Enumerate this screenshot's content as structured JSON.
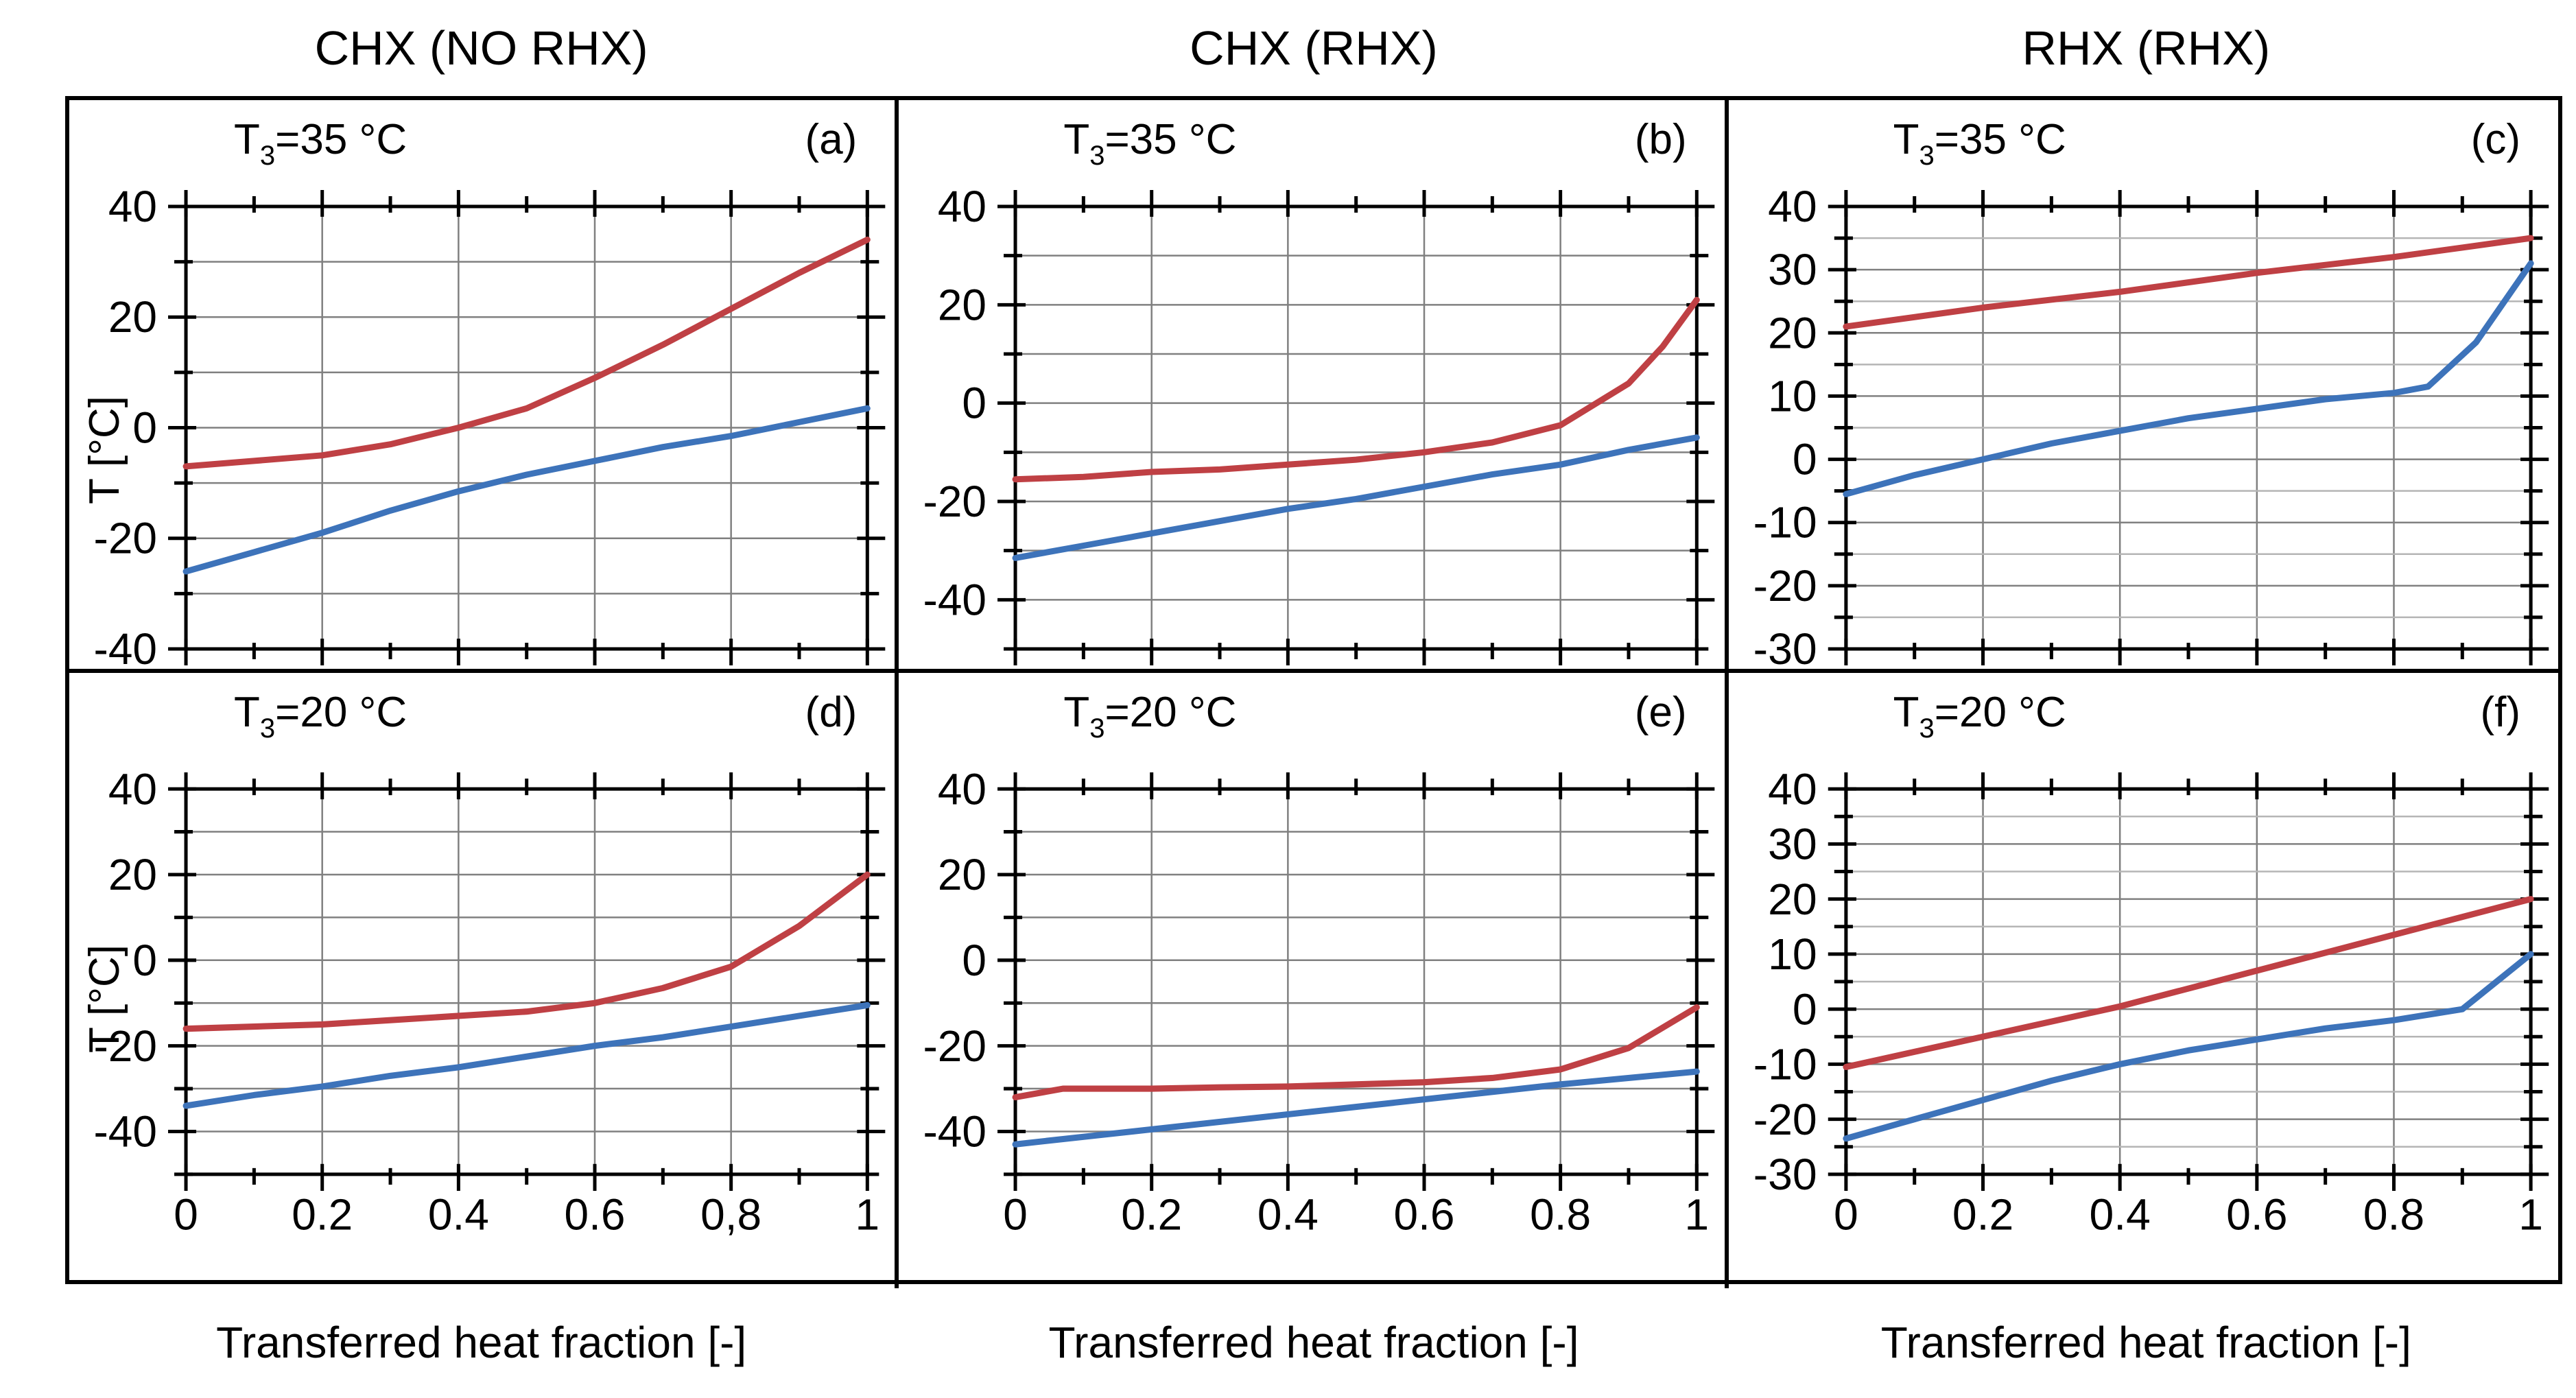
{
  "figure": {
    "column_titles": [
      "CHX (NO RHX)",
      "CHX (RHX)",
      "RHX (RHX)"
    ],
    "x_axis_title": "Transferred heat fraction [-]",
    "y_axis_title": "T [°C]",
    "colors": {
      "red_series": "#bf4044",
      "blue_series": "#3d73ba",
      "grid_major": "#808080",
      "grid_minor": "#b5b5b5",
      "axis": "#000000",
      "background": "#ffffff"
    }
  },
  "chart_data": [
    {
      "id": "a",
      "type": "line",
      "row": 0,
      "col": 0,
      "panel_label": "(a)",
      "annotation": {
        "pre": "T",
        "sub": "3",
        "post": "=35 °C"
      },
      "annotation_text": "T3=35 °C",
      "show_y_axis_title": true,
      "xlim": [
        0,
        1
      ],
      "ylim": [
        -40,
        40
      ],
      "grid_step": 10,
      "tick_step": 10,
      "ytick_values": [
        40,
        20,
        0,
        -20,
        -40
      ],
      "ytick_labels": [
        "40",
        "20",
        "0",
        "-20",
        "-40"
      ],
      "xtick_values": [
        0,
        0.2,
        0.4,
        0.6,
        0.8,
        1
      ],
      "xtick_labels": [],
      "series": [
        {
          "id": "red-line",
          "color_key": "red_series",
          "points": [
            [
              0,
              -7
            ],
            [
              0.1,
              -6
            ],
            [
              0.2,
              -5
            ],
            [
              0.3,
              -3
            ],
            [
              0.4,
              0
            ],
            [
              0.5,
              3.5
            ],
            [
              0.6,
              9
            ],
            [
              0.7,
              15
            ],
            [
              0.8,
              21.5
            ],
            [
              0.9,
              28
            ],
            [
              1,
              34
            ]
          ]
        },
        {
          "id": "blue-line",
          "color_key": "blue_series",
          "points": [
            [
              0,
              -26
            ],
            [
              0.1,
              -22.5
            ],
            [
              0.2,
              -19
            ],
            [
              0.3,
              -15
            ],
            [
              0.4,
              -11.5
            ],
            [
              0.5,
              -8.5
            ],
            [
              0.6,
              -6
            ],
            [
              0.7,
              -3.5
            ],
            [
              0.8,
              -1.5
            ],
            [
              0.9,
              1
            ],
            [
              1,
              3.5
            ]
          ]
        }
      ]
    },
    {
      "id": "b",
      "type": "line",
      "row": 0,
      "col": 1,
      "panel_label": "(b)",
      "annotation": {
        "pre": "T",
        "sub": "3",
        "post": "=35 °C"
      },
      "annotation_text": "T3=35 °C",
      "show_y_axis_title": false,
      "xlim": [
        0,
        1
      ],
      "ylim": [
        -50,
        40
      ],
      "grid_step": 10,
      "tick_step": 10,
      "ytick_values": [
        40,
        20,
        0,
        -20,
        -40
      ],
      "ytick_labels": [
        "40",
        "20",
        "0",
        "-20",
        "-40"
      ],
      "xtick_values": [
        0,
        0.2,
        0.4,
        0.6,
        0.8,
        1
      ],
      "xtick_labels": [],
      "series": [
        {
          "id": "red-line",
          "color_key": "red_series",
          "points": [
            [
              0,
              -15.5
            ],
            [
              0.1,
              -15
            ],
            [
              0.2,
              -14
            ],
            [
              0.3,
              -13.5
            ],
            [
              0.4,
              -12.5
            ],
            [
              0.5,
              -11.5
            ],
            [
              0.6,
              -10
            ],
            [
              0.7,
              -8
            ],
            [
              0.8,
              -4.5
            ],
            [
              0.9,
              4
            ],
            [
              0.95,
              11.5
            ],
            [
              1,
              21
            ]
          ]
        },
        {
          "id": "blue-line",
          "color_key": "blue_series",
          "points": [
            [
              0,
              -31.5
            ],
            [
              0.1,
              -29
            ],
            [
              0.2,
              -26.5
            ],
            [
              0.3,
              -24
            ],
            [
              0.4,
              -21.5
            ],
            [
              0.5,
              -19.5
            ],
            [
              0.6,
              -17
            ],
            [
              0.7,
              -14.5
            ],
            [
              0.8,
              -12.5
            ],
            [
              0.9,
              -9.5
            ],
            [
              1,
              -7
            ]
          ]
        }
      ]
    },
    {
      "id": "c",
      "type": "line",
      "row": 0,
      "col": 2,
      "panel_label": "(c)",
      "annotation": {
        "pre": "T",
        "sub": "3",
        "post": "=35 °C"
      },
      "annotation_text": "T3=35 °C",
      "show_y_axis_title": false,
      "xlim": [
        0,
        1
      ],
      "ylim": [
        -30,
        40
      ],
      "grid_step": 5,
      "tick_step": 5,
      "ytick_values": [
        40,
        30,
        20,
        10,
        0,
        -10,
        -20,
        -30
      ],
      "ytick_labels": [
        "40",
        "30",
        "20",
        "10",
        "0",
        "-10",
        "-20",
        "-30"
      ],
      "xtick_values": [
        0,
        0.2,
        0.4,
        0.6,
        0.8,
        1
      ],
      "xtick_labels": [],
      "series": [
        {
          "id": "red-line",
          "color_key": "red_series",
          "points": [
            [
              0,
              21
            ],
            [
              0.2,
              24
            ],
            [
              0.4,
              26.5
            ],
            [
              0.6,
              29.5
            ],
            [
              0.8,
              32
            ],
            [
              0.9,
              33.5
            ],
            [
              1,
              35
            ]
          ]
        },
        {
          "id": "blue-line",
          "color_key": "blue_series",
          "points": [
            [
              0,
              -5.5
            ],
            [
              0.1,
              -2.5
            ],
            [
              0.2,
              0
            ],
            [
              0.3,
              2.5
            ],
            [
              0.4,
              4.5
            ],
            [
              0.5,
              6.5
            ],
            [
              0.6,
              8
            ],
            [
              0.7,
              9.5
            ],
            [
              0.8,
              10.5
            ],
            [
              0.85,
              11.5
            ],
            [
              0.92,
              18.5
            ],
            [
              1,
              31
            ]
          ]
        }
      ]
    },
    {
      "id": "d",
      "type": "line",
      "row": 1,
      "col": 0,
      "panel_label": "(d)",
      "annotation": {
        "pre": "T",
        "sub": "3",
        "post": "=20 °C"
      },
      "annotation_text": "T3=20 °C",
      "show_y_axis_title": true,
      "xlim": [
        0,
        1
      ],
      "ylim": [
        -50,
        40
      ],
      "grid_step": 10,
      "tick_step": 10,
      "ytick_values": [
        40,
        20,
        0,
        -20,
        -40
      ],
      "ytick_labels": [
        "40",
        "20",
        "0",
        "-20",
        "-40"
      ],
      "xtick_values": [
        0,
        0.2,
        0.4,
        0.6,
        0.8,
        1
      ],
      "xtick_labels": [
        "0",
        "0.2",
        "0.4",
        "0.6",
        "0,8",
        "1"
      ],
      "series": [
        {
          "id": "red-line",
          "color_key": "red_series",
          "points": [
            [
              0,
              -16
            ],
            [
              0.1,
              -15.5
            ],
            [
              0.2,
              -15
            ],
            [
              0.3,
              -14
            ],
            [
              0.4,
              -13
            ],
            [
              0.5,
              -12
            ],
            [
              0.6,
              -10
            ],
            [
              0.7,
              -6.5
            ],
            [
              0.8,
              -1.5
            ],
            [
              0.9,
              8
            ],
            [
              1,
              20
            ]
          ]
        },
        {
          "id": "blue-line",
          "color_key": "blue_series",
          "points": [
            [
              0,
              -34
            ],
            [
              0.1,
              -31.5
            ],
            [
              0.2,
              -29.5
            ],
            [
              0.3,
              -27
            ],
            [
              0.4,
              -25
            ],
            [
              0.5,
              -22.5
            ],
            [
              0.6,
              -20
            ],
            [
              0.7,
              -18
            ],
            [
              0.8,
              -15.5
            ],
            [
              0.9,
              -13
            ],
            [
              1,
              -10.5
            ]
          ]
        }
      ]
    },
    {
      "id": "e",
      "type": "line",
      "row": 1,
      "col": 1,
      "panel_label": "(e)",
      "annotation": {
        "pre": "T",
        "sub": "3",
        "post": "=20 °C"
      },
      "annotation_text": "T3=20 °C",
      "show_y_axis_title": false,
      "xlim": [
        0,
        1
      ],
      "ylim": [
        -50,
        40
      ],
      "grid_step": 10,
      "tick_step": 10,
      "ytick_values": [
        40,
        20,
        0,
        -20,
        -40
      ],
      "ytick_labels": [
        "40",
        "20",
        "0",
        "-20",
        "-40"
      ],
      "xtick_values": [
        0,
        0.2,
        0.4,
        0.6,
        0.8,
        1
      ],
      "xtick_labels": [
        "0",
        "0.2",
        "0.4",
        "0.6",
        "0.8",
        "1"
      ],
      "series": [
        {
          "id": "red-line",
          "color_key": "red_series",
          "points": [
            [
              0,
              -32
            ],
            [
              0.07,
              -30
            ],
            [
              0.2,
              -30
            ],
            [
              0.3,
              -29.7
            ],
            [
              0.4,
              -29.5
            ],
            [
              0.5,
              -29
            ],
            [
              0.6,
              -28.5
            ],
            [
              0.7,
              -27.5
            ],
            [
              0.8,
              -25.5
            ],
            [
              0.9,
              -20.5
            ],
            [
              1,
              -11
            ]
          ]
        },
        {
          "id": "blue-line",
          "color_key": "blue_series",
          "points": [
            [
              0,
              -43
            ],
            [
              0.2,
              -39.5
            ],
            [
              0.4,
              -36
            ],
            [
              0.6,
              -32.5
            ],
            [
              0.8,
              -29
            ],
            [
              1,
              -26
            ]
          ]
        }
      ]
    },
    {
      "id": "f",
      "type": "line",
      "row": 1,
      "col": 2,
      "panel_label": "(f)",
      "annotation": {
        "pre": "T",
        "sub": "3",
        "post": "=20 °C"
      },
      "annotation_text": "T3=20 °C",
      "show_y_axis_title": false,
      "xlim": [
        0,
        1
      ],
      "ylim": [
        -30,
        40
      ],
      "grid_step": 5,
      "tick_step": 5,
      "ytick_values": [
        40,
        30,
        20,
        10,
        0,
        -10,
        -20,
        -30
      ],
      "ytick_labels": [
        "40",
        "30",
        "20",
        "10",
        "0",
        "-10",
        "-20",
        "-30"
      ],
      "xtick_values": [
        0,
        0.2,
        0.4,
        0.6,
        0.8,
        1
      ],
      "xtick_labels": [
        "0",
        "0.2",
        "0.4",
        "0.6",
        "0.8",
        "1"
      ],
      "series": [
        {
          "id": "red-line",
          "color_key": "red_series",
          "points": [
            [
              0,
              -10.5
            ],
            [
              0.2,
              -5
            ],
            [
              0.4,
              0.5
            ],
            [
              0.6,
              7
            ],
            [
              0.8,
              13.5
            ],
            [
              1,
              20
            ]
          ]
        },
        {
          "id": "blue-line",
          "color_key": "blue_series",
          "points": [
            [
              0,
              -23.5
            ],
            [
              0.1,
              -20
            ],
            [
              0.2,
              -16.5
            ],
            [
              0.3,
              -13
            ],
            [
              0.4,
              -10
            ],
            [
              0.5,
              -7.5
            ],
            [
              0.6,
              -5.5
            ],
            [
              0.7,
              -3.5
            ],
            [
              0.8,
              -2
            ],
            [
              0.9,
              0
            ],
            [
              1,
              10
            ]
          ]
        }
      ]
    }
  ]
}
